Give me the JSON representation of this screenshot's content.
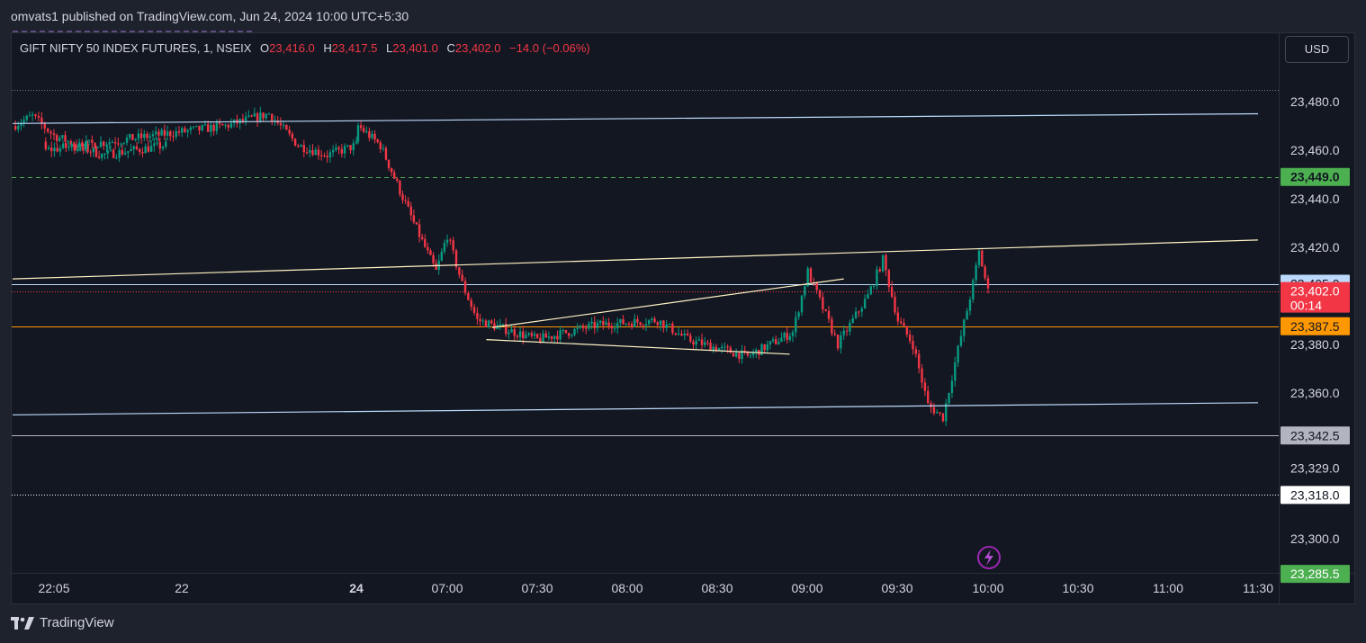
{
  "header": {
    "published_text": "omvats1 published on TradingView.com, Jun 24, 2024 10:00 UTC+5:30"
  },
  "legend": {
    "symbol": "GIFT NIFTY 50 INDEX FUTURES, 1, NSEIX",
    "open_label": "O",
    "open_value": "23,416.0",
    "high_label": "H",
    "high_value": "23,417.5",
    "low_label": "L",
    "low_value": "23,401.0",
    "close_label": "C",
    "close_value": "23,402.0",
    "change": "−14.0 (−0.06%)"
  },
  "currency_button": "USD",
  "chart_data": {
    "type": "candlestick",
    "y_axis_ticks": [
      "23,480.0",
      "23,460.0",
      "23,440.0",
      "23,420.0",
      "23,380.0",
      "23,360.0",
      "23,329.0",
      "23,300.0"
    ],
    "ylim": [
      23280,
      23500
    ],
    "x_axis_ticks": [
      {
        "label": "22:05",
        "bold": false
      },
      {
        "label": "22",
        "bold": false
      },
      {
        "label": "24",
        "bold": true
      },
      {
        "label": "07:00",
        "bold": false
      },
      {
        "label": "07:30",
        "bold": false
      },
      {
        "label": "08:00",
        "bold": false
      },
      {
        "label": "08:30",
        "bold": false
      },
      {
        "label": "09:00",
        "bold": false
      },
      {
        "label": "09:30",
        "bold": false
      },
      {
        "label": "10:00",
        "bold": false
      },
      {
        "label": "10:30",
        "bold": false
      },
      {
        "label": "11:00",
        "bold": false
      },
      {
        "label": "11:30",
        "bold": false
      }
    ],
    "price_labels": [
      {
        "text": "23,449.0",
        "value": 23449.0,
        "bg": "#4caf50",
        "fg": "#131722",
        "bold": true
      },
      {
        "text": "23,405.0",
        "value": 23405.0,
        "bg": "#bbd9fb",
        "fg": "#131722",
        "bold": false
      },
      {
        "text": "23,402.0",
        "sub": "00:14",
        "value": 23402.0,
        "bg": "#f23645",
        "fg": "#ffffff",
        "bold": false
      },
      {
        "text": "23,387.5",
        "value": 23387.5,
        "bg": "#ff9800",
        "fg": "#131722",
        "bold": false
      },
      {
        "text": "23,342.5",
        "value": 23342.5,
        "bg": "#b2b5be",
        "fg": "#131722",
        "bold": false
      },
      {
        "text": "23,318.0",
        "value": 23318.0,
        "bg": "#ffffff",
        "fg": "#131722",
        "bold": false
      },
      {
        "text": "23,285.5",
        "value": 23285.5,
        "bg": "#4caf50",
        "fg": "#ffffff",
        "bold": false
      }
    ],
    "horizontal_lines": [
      {
        "value": 23449.0,
        "color": "#4caf50",
        "style": "dashed"
      },
      {
        "value": 23405.0,
        "color": "#bbd9fb",
        "style": "solid"
      },
      {
        "value": 23402.0,
        "color": "#f23645",
        "style": "dotted"
      },
      {
        "value": 23387.5,
        "color": "#ff9800",
        "style": "solid"
      },
      {
        "value": 23342.5,
        "color": "#b2b5be",
        "style": "solid"
      },
      {
        "value": 23318.0,
        "color": "#ffffff",
        "style": "dotted"
      },
      {
        "value": 23485.0,
        "color": "#787b86",
        "style": "dotted"
      }
    ],
    "trend_lines": [
      {
        "name": "upper-channel-line",
        "from": {
          "t": "21:40",
          "price": 23471
        },
        "to": {
          "t": "11:30",
          "price": 23475
        },
        "color": "#bbd9fb"
      },
      {
        "name": "lower-channel-line",
        "from": {
          "t": "21:40",
          "price": 23351
        },
        "to": {
          "t": "11:30",
          "price": 23356
        },
        "color": "#bbd9fb"
      },
      {
        "name": "resistance-line",
        "from": {
          "t": "21:40",
          "price": 23407
        },
        "to": {
          "t": "11:30",
          "price": 23423
        },
        "color": "#fff3c4"
      },
      {
        "name": "triangle-upper-line",
        "from": {
          "t": "07:15",
          "price": 23387
        },
        "to": {
          "t": "09:12",
          "price": 23407
        },
        "color": "#fff3c4"
      },
      {
        "name": "triangle-lower-line",
        "from": {
          "t": "07:13",
          "price": 23382
        },
        "to": {
          "t": "08:54",
          "price": 23376
        },
        "color": "#fff3c4"
      }
    ],
    "colors": {
      "up": "#089981",
      "down": "#f23645",
      "background": "#131722",
      "axis_text": "#d1d4dc"
    },
    "series_path": [
      {
        "t": "21:40",
        "price": 23470
      },
      {
        "t": "21:52",
        "price": 23474
      },
      {
        "t": "22:05",
        "price": 23466
      },
      {
        "t": "22:20",
        "price": 23458
      },
      {
        "t": "22:40",
        "price": 23462
      },
      {
        "t": "22:00",
        "price": 23460
      },
      {
        "t": "23:00",
        "price": 23470
      },
      {
        "t": "23:15",
        "price": 23475
      },
      {
        "t": "23:25",
        "price": 23462
      },
      {
        "t": "23:35",
        "price": 23458
      },
      {
        "t": "23:45",
        "price": 23462
      },
      {
        "t": "06:20",
        "price": 23470
      },
      {
        "t": "06:30",
        "price": 23462
      },
      {
        "t": "06:45",
        "price": 23430
      },
      {
        "t": "06:55",
        "price": 23410
      },
      {
        "t": "07:00",
        "price": 23425
      },
      {
        "t": "07:05",
        "price": 23405
      },
      {
        "t": "07:10",
        "price": 23390
      },
      {
        "t": "07:30",
        "price": 23382
      },
      {
        "t": "07:50",
        "price": 23388
      },
      {
        "t": "08:10",
        "price": 23390
      },
      {
        "t": "08:20",
        "price": 23382
      },
      {
        "t": "08:40",
        "price": 23375
      },
      {
        "t": "08:55",
        "price": 23385
      },
      {
        "t": "09:00",
        "price": 23410
      },
      {
        "t": "09:05",
        "price": 23395
      },
      {
        "t": "09:10",
        "price": 23380
      },
      {
        "t": "09:20",
        "price": 23400
      },
      {
        "t": "09:25",
        "price": 23415
      },
      {
        "t": "09:30",
        "price": 23390
      },
      {
        "t": "09:35",
        "price": 23380
      },
      {
        "t": "09:40",
        "price": 23355
      },
      {
        "t": "09:45",
        "price": 23350
      },
      {
        "t": "09:50",
        "price": 23378
      },
      {
        "t": "09:55",
        "price": 23405
      },
      {
        "t": "09:57",
        "price": 23418
      },
      {
        "t": "10:00",
        "price": 23402
      }
    ]
  },
  "indicator_icon": "lightning-icon",
  "footer": {
    "brand": "TradingView",
    "logo_icon": "tradingview-logo-icon"
  }
}
